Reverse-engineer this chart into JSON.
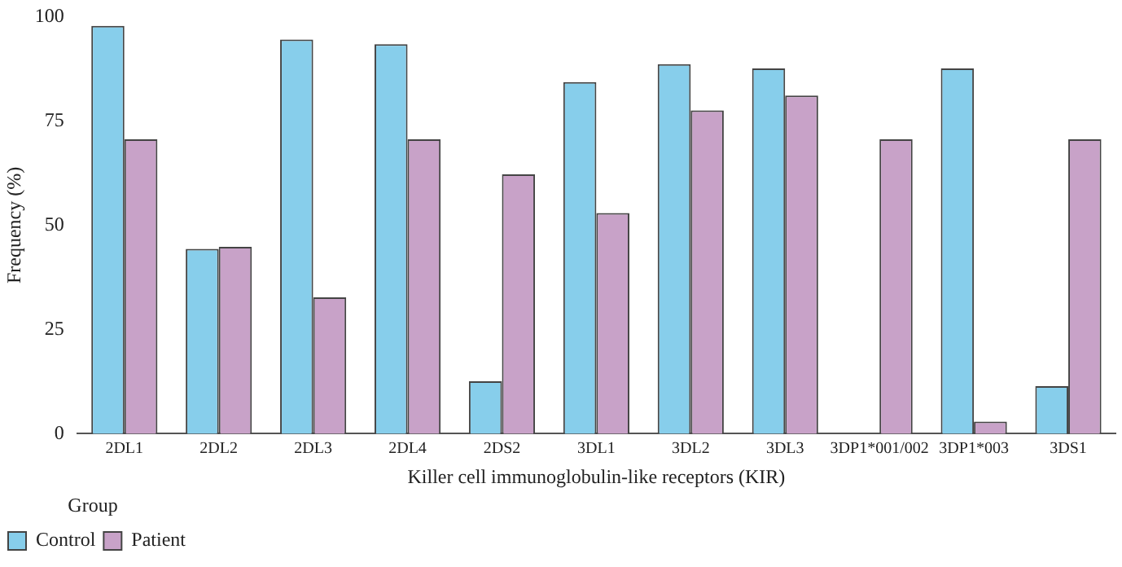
{
  "chart_data": {
    "type": "bar",
    "xlabel": "Killer cell immunoglobulin-like receptors (KIR)",
    "ylabel": "Frequency (%)",
    "legend_title": "Group",
    "legend": "bottom left",
    "grid": false,
    "categories": [
      "2DL1",
      "2DL2",
      "2DL3",
      "2DL4",
      "2DS2",
      "3DL1",
      "3DL2",
      "3DL3",
      "3DP1*001/002",
      "3DP1*003",
      "3DS1"
    ],
    "ylim": [
      0,
      100
    ],
    "yticks": [
      0,
      25,
      50,
      75,
      100
    ],
    "series": [
      {
        "name": "Control",
        "color": "#87ceeb",
        "values": [
          97.8,
          44.3,
          94.5,
          93.4,
          12.6,
          84.3,
          88.6,
          87.6,
          0,
          87.6,
          11.4
        ]
      },
      {
        "name": "Patient",
        "color": "#c8a2c8",
        "values": [
          70.6,
          44.8,
          32.7,
          70.6,
          62.2,
          52.9,
          77.5,
          81.1,
          70.6,
          2.9,
          70.6
        ]
      }
    ]
  }
}
